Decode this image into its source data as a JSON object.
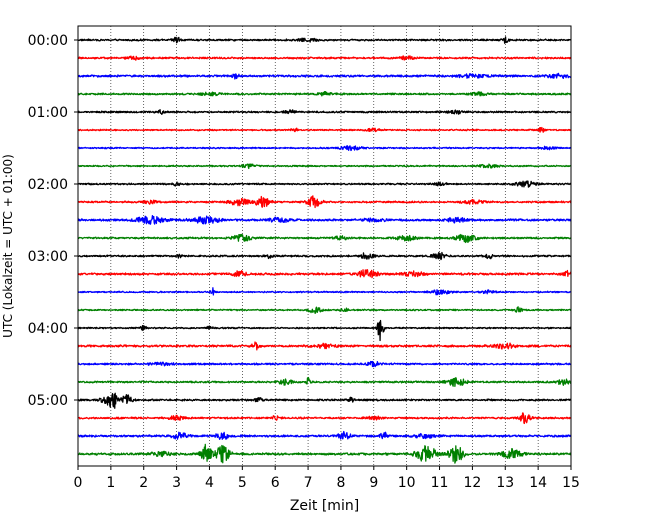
{
  "chart_data": {
    "type": "line",
    "title": "",
    "xlabel": "Zeit  [min]",
    "ylabel": "UTC (Lokalzeit = UTC + 01:00)",
    "xlim": [
      0,
      15
    ],
    "x_ticks": [
      0,
      1,
      2,
      3,
      4,
      5,
      6,
      7,
      8,
      9,
      10,
      11,
      12,
      13,
      14,
      15
    ],
    "y_tick_labels": [
      "00:00",
      "01:00",
      "02:00",
      "03:00",
      "04:00",
      "05:00"
    ],
    "grid": "vertical dotted lines at each minute",
    "trace_colors": [
      "#000000",
      "#ff0000",
      "#0000ff",
      "#008000"
    ],
    "traces": [
      {
        "start": "00:00",
        "color": "#000000",
        "base_amp": 0.1,
        "events": [
          [
            3.0,
            0.5,
            0.1
          ],
          [
            13.0,
            0.4,
            0.1
          ],
          [
            7.0,
            0.2,
            0.3
          ]
        ]
      },
      {
        "start": "00:15",
        "color": "#ff0000",
        "base_amp": 0.1,
        "events": [
          [
            1.7,
            0.2,
            0.2
          ],
          [
            10.0,
            0.25,
            0.2
          ]
        ]
      },
      {
        "start": "00:30",
        "color": "#0000ff",
        "base_amp": 0.12,
        "events": [
          [
            4.8,
            0.4,
            0.1
          ],
          [
            14.6,
            0.25,
            0.3
          ],
          [
            12.0,
            0.2,
            0.4
          ]
        ]
      },
      {
        "start": "00:45",
        "color": "#008000",
        "base_amp": 0.1,
        "events": [
          [
            7.5,
            0.3,
            0.2
          ],
          [
            4.0,
            0.2,
            0.3
          ],
          [
            12.2,
            0.2,
            0.2
          ]
        ]
      },
      {
        "start": "01:00",
        "color": "#000000",
        "base_amp": 0.1,
        "events": [
          [
            2.5,
            0.3,
            0.1
          ],
          [
            6.5,
            0.2,
            0.2
          ],
          [
            11.5,
            0.2,
            0.2
          ]
        ]
      },
      {
        "start": "01:15",
        "color": "#ff0000",
        "base_amp": 0.08,
        "events": [
          [
            6.6,
            0.3,
            0.1
          ],
          [
            14.1,
            0.35,
            0.1
          ],
          [
            9.0,
            0.2,
            0.2
          ]
        ]
      },
      {
        "start": "01:30",
        "color": "#0000ff",
        "base_amp": 0.08,
        "events": [
          [
            8.3,
            0.25,
            0.3
          ],
          [
            14.3,
            0.2,
            0.2
          ]
        ]
      },
      {
        "start": "01:45",
        "color": "#008000",
        "base_amp": 0.08,
        "events": [
          [
            5.2,
            0.25,
            0.2
          ],
          [
            12.5,
            0.2,
            0.3
          ]
        ]
      },
      {
        "start": "02:00",
        "color": "#000000",
        "base_amp": 0.09,
        "events": [
          [
            13.6,
            0.4,
            0.3
          ],
          [
            3.0,
            0.2,
            0.1
          ],
          [
            11.0,
            0.2,
            0.2
          ]
        ]
      },
      {
        "start": "02:15",
        "color": "#ff0000",
        "base_amp": 0.1,
        "events": [
          [
            5.6,
            0.8,
            0.2
          ],
          [
            7.2,
            0.8,
            0.2
          ],
          [
            4.9,
            0.4,
            0.3
          ],
          [
            2.2,
            0.2,
            0.2
          ],
          [
            12.0,
            0.25,
            0.3
          ]
        ]
      },
      {
        "start": "02:30",
        "color": "#0000ff",
        "base_amp": 0.12,
        "events": [
          [
            2.2,
            0.5,
            0.4
          ],
          [
            3.9,
            0.4,
            0.4
          ],
          [
            6.1,
            0.3,
            0.3
          ],
          [
            11.5,
            0.3,
            0.3
          ],
          [
            9.0,
            0.2,
            0.3
          ]
        ]
      },
      {
        "start": "02:45",
        "color": "#008000",
        "base_amp": 0.1,
        "events": [
          [
            5.0,
            0.4,
            0.3
          ],
          [
            11.8,
            0.5,
            0.3
          ],
          [
            10.0,
            0.3,
            0.3
          ],
          [
            8.0,
            0.25,
            0.2
          ]
        ]
      },
      {
        "start": "03:00",
        "color": "#000000",
        "base_amp": 0.1,
        "events": [
          [
            8.8,
            0.4,
            0.2
          ],
          [
            11.0,
            0.4,
            0.2
          ],
          [
            12.5,
            0.35,
            0.1
          ],
          [
            5.8,
            0.3,
            0.1
          ],
          [
            3.1,
            0.2,
            0.1
          ]
        ]
      },
      {
        "start": "03:15",
        "color": "#ff0000",
        "base_amp": 0.12,
        "events": [
          [
            8.8,
            0.5,
            0.3
          ],
          [
            4.9,
            0.4,
            0.2
          ],
          [
            10.2,
            0.3,
            0.3
          ],
          [
            14.9,
            0.4,
            0.1
          ]
        ]
      },
      {
        "start": "03:30",
        "color": "#0000ff",
        "base_amp": 0.08,
        "events": [
          [
            4.1,
            0.5,
            0.05
          ],
          [
            11.0,
            0.3,
            0.3
          ],
          [
            12.5,
            0.2,
            0.2
          ]
        ]
      },
      {
        "start": "03:45",
        "color": "#008000",
        "base_amp": 0.08,
        "events": [
          [
            7.2,
            0.35,
            0.2
          ],
          [
            8.1,
            0.3,
            0.1
          ],
          [
            13.4,
            0.4,
            0.1
          ]
        ]
      },
      {
        "start": "04:00",
        "color": "#000000",
        "base_amp": 0.08,
        "events": [
          [
            9.2,
            2.2,
            0.08
          ],
          [
            2.0,
            0.3,
            0.1
          ],
          [
            4.0,
            0.2,
            0.1
          ]
        ]
      },
      {
        "start": "04:15",
        "color": "#ff0000",
        "base_amp": 0.12,
        "events": [
          [
            5.4,
            0.5,
            0.1
          ],
          [
            13.0,
            0.3,
            0.3
          ],
          [
            7.5,
            0.25,
            0.3
          ]
        ]
      },
      {
        "start": "04:30",
        "color": "#0000ff",
        "base_amp": 0.1,
        "events": [
          [
            9.0,
            0.3,
            0.2
          ],
          [
            2.5,
            0.25,
            0.3
          ]
        ]
      },
      {
        "start": "04:45",
        "color": "#008000",
        "base_amp": 0.1,
        "events": [
          [
            11.5,
            0.5,
            0.3
          ],
          [
            6.3,
            0.4,
            0.2
          ],
          [
            7.0,
            0.5,
            0.05
          ],
          [
            14.8,
            0.4,
            0.2
          ]
        ]
      },
      {
        "start": "05:00",
        "color": "#000000",
        "base_amp": 0.1,
        "events": [
          [
            1.1,
            0.9,
            0.15
          ],
          [
            1.5,
            0.7,
            0.15
          ],
          [
            0.9,
            0.6,
            0.2
          ],
          [
            5.5,
            0.3,
            0.1
          ],
          [
            8.3,
            0.3,
            0.1
          ]
        ]
      },
      {
        "start": "05:15",
        "color": "#ff0000",
        "base_amp": 0.1,
        "events": [
          [
            13.6,
            0.8,
            0.15
          ],
          [
            3.0,
            0.3,
            0.2
          ],
          [
            6.0,
            0.3,
            0.1
          ],
          [
            9.0,
            0.25,
            0.2
          ]
        ]
      },
      {
        "start": "05:30",
        "color": "#0000ff",
        "base_amp": 0.12,
        "events": [
          [
            3.1,
            0.5,
            0.2
          ],
          [
            8.1,
            0.5,
            0.2
          ],
          [
            9.3,
            0.7,
            0.08
          ],
          [
            4.4,
            0.4,
            0.2
          ],
          [
            10.5,
            0.25,
            0.3
          ]
        ]
      },
      {
        "start": "05:45",
        "color": "#008000",
        "base_amp": 0.12,
        "events": [
          [
            3.9,
            1.2,
            0.15
          ],
          [
            4.4,
            1.1,
            0.2
          ],
          [
            10.6,
            1.1,
            0.3
          ],
          [
            11.5,
            1.2,
            0.2
          ],
          [
            13.2,
            0.6,
            0.3
          ],
          [
            2.5,
            0.3,
            0.3
          ]
        ]
      }
    ]
  }
}
